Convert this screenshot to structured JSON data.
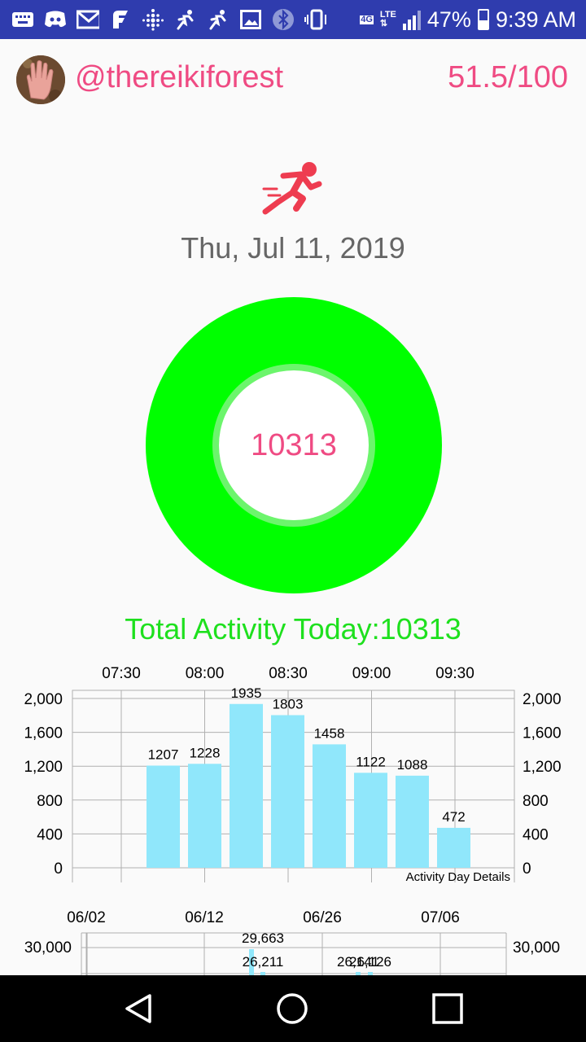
{
  "status_bar": {
    "network_label": "4G",
    "lte_label": "LTE",
    "battery": "47%",
    "time": "9:39 AM",
    "battery_level": 0.47,
    "icons": [
      "keyboard-icon",
      "discord-icon",
      "gmail-icon",
      "fleep-icon",
      "fitbit-icon",
      "runner-icon",
      "runner-icon",
      "image-icon",
      "bluetooth-icon",
      "vibrate-icon",
      "signal-icon",
      "battery-icon"
    ]
  },
  "header": {
    "username": "@thereikiforest",
    "score": "51.5/100"
  },
  "summary": {
    "date": "Thu, Jul 11, 2019",
    "steps": "10313",
    "total_label": "Total Activity Today:10313",
    "accent": "#00ff00",
    "text_accent": "#ef4b83"
  },
  "chart_data": [
    {
      "type": "bar",
      "caption": "Activity Day Details",
      "x_ticks": [
        "07:30",
        "08:00",
        "08:30",
        "09:00",
        "09:30"
      ],
      "x_label_positions": [
        0,
        1,
        2,
        3,
        4
      ],
      "values": [
        1207,
        1228,
        1935,
        1803,
        1458,
        1122,
        1088,
        472
      ],
      "ylim": [
        0,
        2000
      ],
      "yticks": [
        0,
        400,
        800,
        1200,
        1600,
        2000
      ],
      "ytick_labels": [
        "0",
        "400",
        "800",
        "1,200",
        "1,600",
        "2,000"
      ],
      "color": "#90e7fb",
      "grid": true
    },
    {
      "type": "bar",
      "x_ticks": [
        "06/02",
        "06/12",
        "06/26",
        "07/06"
      ],
      "ytick_labels": [
        "30,000"
      ],
      "visible_labels": [
        "29,663",
        "26,211",
        "26,141",
        "26,126"
      ],
      "color": "#90e7fb",
      "grid": true
    }
  ]
}
